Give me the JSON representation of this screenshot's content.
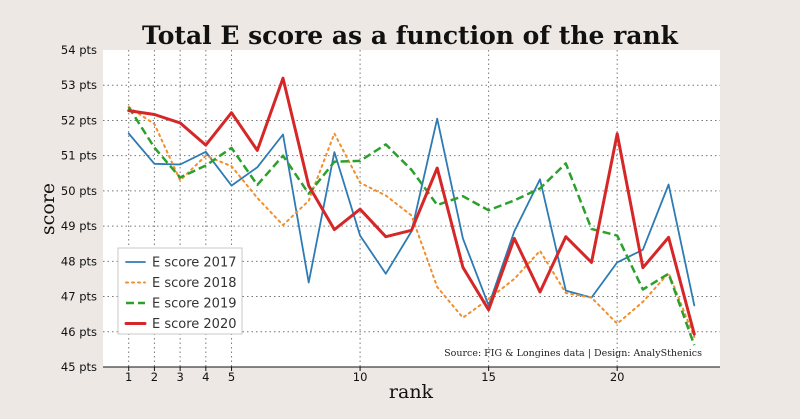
{
  "chart_data": {
    "type": "line",
    "title": "Total E score as a function of the rank",
    "xlabel": "rank",
    "ylabel": "score",
    "source": "Source: FIG & Longines data  |  Design: AnalySthenics",
    "xlim": [
      0,
      24
    ],
    "ylim": [
      45,
      54
    ],
    "x_ticks": [
      1,
      2,
      3,
      4,
      5,
      10,
      15,
      20
    ],
    "y_ticks": [
      45,
      46,
      47,
      48,
      49,
      50,
      51,
      52,
      53,
      54
    ],
    "y_tick_labels": [
      "45 pts",
      "46 pts",
      "47 pts",
      "48 pts",
      "49 pts",
      "50 pts",
      "51 pts",
      "52 pts",
      "53 pts",
      "54 pts"
    ],
    "grid": true,
    "legend_position": "lower-left",
    "x": [
      1,
      2,
      3,
      4,
      5,
      6,
      7,
      8,
      9,
      10,
      11,
      12,
      13,
      14,
      15,
      16,
      17,
      18,
      19,
      20,
      21,
      22,
      23
    ],
    "series": [
      {
        "name": "E score 2017",
        "color": "#2e7bb4",
        "style": "solid",
        "values": [
          51.63,
          50.77,
          50.75,
          51.11,
          50.15,
          50.67,
          51.6,
          47.4,
          51.1,
          48.73,
          47.65,
          48.85,
          52.05,
          48.65,
          46.75,
          48.85,
          50.33,
          47.17,
          46.97,
          47.97,
          48.33,
          50.18,
          46.75
        ]
      },
      {
        "name": "E score 2018",
        "color": "#f28e2b",
        "style": "dotted",
        "values": [
          52.38,
          51.9,
          50.3,
          51.0,
          50.7,
          49.8,
          49.03,
          49.72,
          51.63,
          50.23,
          49.87,
          49.3,
          47.27,
          46.4,
          46.93,
          47.5,
          48.3,
          47.1,
          46.97,
          46.23,
          46.85,
          47.67,
          45.85
        ]
      },
      {
        "name": "E score 2019",
        "color": "#2ca02c",
        "style": "dashed",
        "values": [
          52.38,
          51.23,
          50.38,
          50.72,
          51.22,
          50.17,
          51.0,
          49.92,
          50.83,
          50.85,
          51.32,
          50.6,
          49.6,
          49.85,
          49.45,
          49.73,
          50.07,
          50.78,
          48.92,
          48.73,
          47.2,
          47.65,
          45.62
        ]
      },
      {
        "name": "E score 2020",
        "color": "#d62728",
        "style": "solid-thick",
        "values": [
          52.28,
          52.17,
          51.93,
          51.3,
          52.22,
          51.15,
          53.2,
          50.15,
          48.9,
          49.48,
          48.7,
          48.88,
          50.65,
          47.83,
          46.62,
          48.65,
          47.13,
          48.7,
          47.97,
          51.62,
          47.82,
          48.68,
          45.93
        ]
      }
    ]
  }
}
